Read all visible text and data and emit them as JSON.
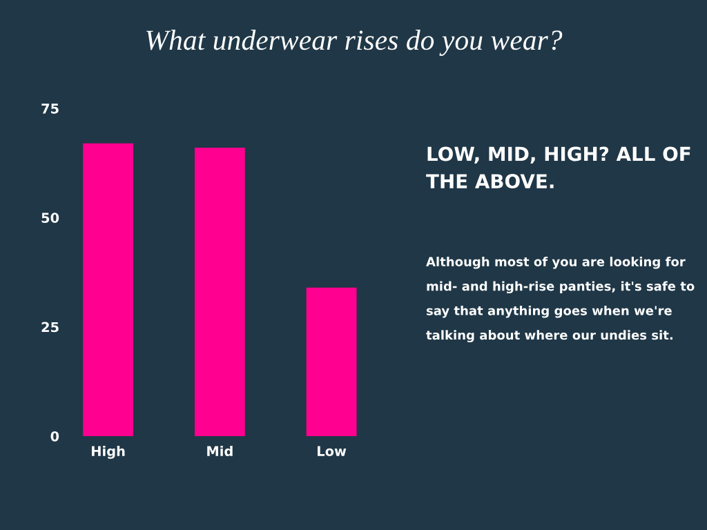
{
  "chart_data": {
    "type": "bar",
    "title": "What underwear rises do you wear?",
    "categories": [
      "High",
      "Mid",
      "Low"
    ],
    "values": [
      67,
      66,
      34
    ],
    "color": "#ff0090",
    "ylim": [
      0,
      75
    ],
    "yticks": [
      0,
      25,
      50,
      75
    ],
    "annotations": [
      "LOW, MID, HIGH? ALL OF THE ABOVE.",
      "Although most of you are looking for mid- and high-rise panties, it's safe to say that anything goes when we're talking about where our undies sit."
    ]
  }
}
